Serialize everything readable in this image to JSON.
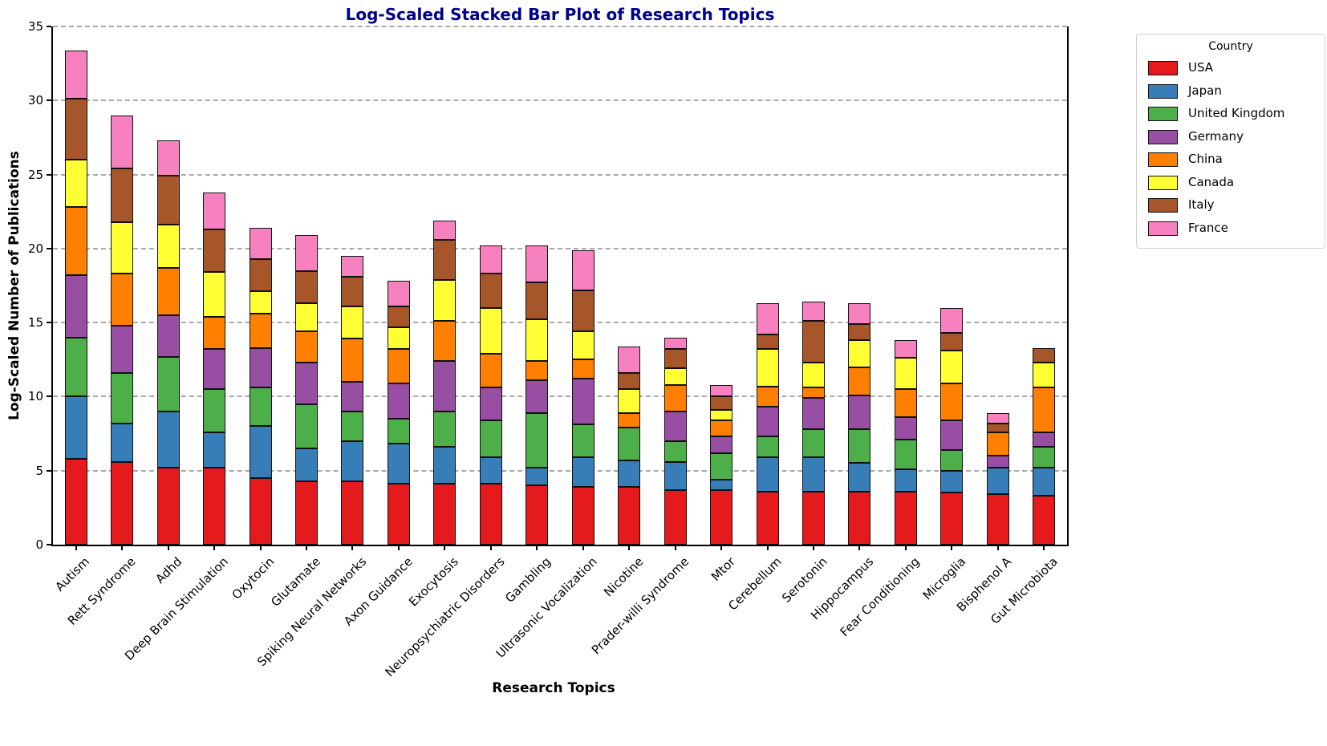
{
  "title": "Log-Scaled Stacked Bar Plot of Research Topics",
  "title_color": "#00008b",
  "axes": {
    "x_label": "Research Topics",
    "y_label": "Log-Scaled Number of Publications"
  },
  "legend": {
    "title": "Country",
    "position": "upper right outside"
  },
  "chart_data": {
    "type": "bar",
    "stacked": true,
    "title": "Log-Scaled Stacked Bar Plot of Research Topics",
    "xlabel": "Research Topics",
    "ylabel": "Log-Scaled Number of Publications",
    "ylim": [
      0,
      35
    ],
    "yticks": [
      0,
      5,
      10,
      15,
      20,
      25,
      30,
      35
    ],
    "grid": "horizontal dashed",
    "legend_title": "Country",
    "categories": [
      "Autism",
      "Rett Syndrome",
      "Adhd",
      "Deep Brain Stimulation",
      "Oxytocin",
      "Glutamate",
      "Spiking Neural Networks",
      "Axon Guidance",
      "Exocytosis",
      "Neuropsychiatric Disorders",
      "Gambling",
      "Ultrasonic Vocalization",
      "Nicotine",
      "Prader-willi Syndrome",
      "Mtor",
      "Cerebellum",
      "Serotonin",
      "Hippocampus",
      "Fear Conditioning",
      "Microglia",
      "Bisphenol A",
      "Gut Microbiota"
    ],
    "series": [
      {
        "name": "USA",
        "color": "#e41a1c",
        "values": [
          5.8,
          5.6,
          5.2,
          5.2,
          4.5,
          4.3,
          4.3,
          4.1,
          4.1,
          4.1,
          4.0,
          3.9,
          3.9,
          3.7,
          3.7,
          3.6,
          3.6,
          3.6,
          3.6,
          3.5,
          3.4,
          3.3
        ]
      },
      {
        "name": "Japan",
        "color": "#377eb8",
        "values": [
          4.2,
          2.6,
          3.8,
          2.4,
          3.5,
          2.2,
          2.7,
          2.7,
          2.5,
          1.8,
          1.2,
          2.0,
          1.8,
          1.9,
          0.7,
          2.3,
          2.3,
          1.9,
          1.5,
          1.5,
          1.8,
          1.9
        ]
      },
      {
        "name": "United Kingdom",
        "color": "#4daf4a",
        "values": [
          4.0,
          3.4,
          3.7,
          2.9,
          2.6,
          3.0,
          2.0,
          1.7,
          2.4,
          2.5,
          3.7,
          2.2,
          2.2,
          1.4,
          1.8,
          1.4,
          1.9,
          2.3,
          2.0,
          1.4,
          0,
          1.4
        ]
      },
      {
        "name": "Germany",
        "color": "#984ea3",
        "values": [
          4.2,
          3.2,
          2.8,
          2.7,
          2.7,
          2.8,
          2.0,
          2.4,
          3.4,
          2.2,
          2.2,
          3.1,
          0,
          2.0,
          1.1,
          2.0,
          2.1,
          2.3,
          1.5,
          2.0,
          0.8,
          1.0
        ]
      },
      {
        "name": "China",
        "color": "#ff7f00",
        "values": [
          4.6,
          3.5,
          3.2,
          2.2,
          2.3,
          2.1,
          2.9,
          2.3,
          2.7,
          2.3,
          1.3,
          1.3,
          1.0,
          1.8,
          1.1,
          1.4,
          0.7,
          1.9,
          1.9,
          2.5,
          1.6,
          3.0
        ]
      },
      {
        "name": "Canada",
        "color": "#ffff33",
        "values": [
          3.2,
          3.5,
          2.9,
          3.0,
          1.5,
          1.9,
          2.2,
          1.5,
          2.8,
          3.1,
          2.8,
          1.9,
          1.6,
          1.1,
          0.7,
          2.5,
          1.7,
          1.8,
          2.1,
          2.2,
          0,
          1.7
        ]
      },
      {
        "name": "Italy",
        "color": "#a65628",
        "values": [
          4.1,
          3.6,
          3.3,
          2.9,
          2.2,
          2.2,
          2.0,
          1.4,
          2.7,
          2.3,
          2.5,
          2.8,
          1.1,
          1.3,
          0.9,
          1.0,
          2.8,
          1.1,
          0,
          1.2,
          0.6,
          1.0
        ]
      },
      {
        "name": "France",
        "color": "#f781bf",
        "values": [
          3.3,
          3.6,
          2.4,
          2.5,
          2.1,
          2.4,
          1.4,
          1.7,
          1.3,
          1.9,
          2.5,
          2.7,
          1.8,
          0.8,
          0.8,
          2.1,
          1.3,
          1.4,
          1.2,
          1.7,
          0.7,
          0
        ]
      }
    ]
  }
}
